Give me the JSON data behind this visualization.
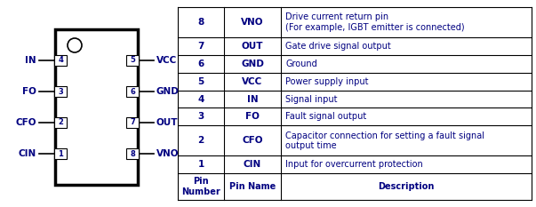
{
  "pin_numbers": [
    1,
    2,
    3,
    4,
    5,
    6,
    7,
    8
  ],
  "pin_names": [
    "CIN",
    "CFO",
    "FO",
    "IN",
    "VCC",
    "GND",
    "OUT",
    "VNO"
  ],
  "descriptions": [
    "Input for overcurrent protection",
    "Capacitor connection for setting a fault signal\noutput time",
    "Fault signal output",
    "Signal input",
    "Power supply input",
    "Ground",
    "Gate drive signal output",
    "Drive current return pin\n(For example, IGBT emitter is connected)"
  ],
  "left_pins": [
    {
      "num": "1",
      "name": "CIN"
    },
    {
      "num": "2",
      "name": "CFO"
    },
    {
      "num": "3",
      "name": "FO"
    },
    {
      "num": "4",
      "name": "IN"
    }
  ],
  "right_pins": [
    {
      "num": "8",
      "name": "VNO"
    },
    {
      "num": "7",
      "name": "OUT"
    },
    {
      "num": "6",
      "name": "GND"
    },
    {
      "num": "5",
      "name": "VCC"
    }
  ],
  "table_header": [
    "Pin\nNumber",
    "Pin Name",
    "Description"
  ],
  "text_color": "#000080",
  "bg_color": "#ffffff"
}
